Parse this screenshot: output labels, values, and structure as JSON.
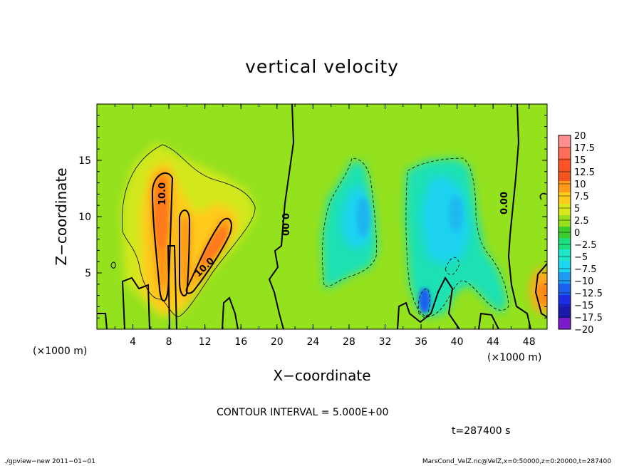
{
  "chart_data": {
    "type": "heatmap",
    "title": "vertical velocity",
    "xlabel": "X−coordinate",
    "ylabel": "Z−coordinate",
    "x_unit": "(×1000 m)",
    "y_unit": "(×1000 m)",
    "xlim": [
      0,
      50
    ],
    "ylim": [
      0,
      20
    ],
    "x_ticks": [
      4,
      8,
      12,
      16,
      20,
      24,
      28,
      32,
      36,
      40,
      44,
      48
    ],
    "y_ticks": [
      5,
      10,
      15
    ],
    "colorbar": {
      "levels": [
        20,
        17.5,
        15,
        12.5,
        10,
        7.5,
        5,
        2.5,
        0,
        -2.5,
        -5,
        -7.5,
        -10,
        -12.5,
        -15,
        -17.5,
        -20
      ],
      "labels": [
        "20",
        "17.5",
        "15",
        "12.5",
        "10",
        "7.5",
        "5",
        "2.5",
        "0",
        "−2.5",
        "−5",
        "−7.5",
        "−10",
        "−12.5",
        "−15",
        "−17.5",
        "−20"
      ],
      "colors": [
        "#ff8f8f",
        "#ff6e5a",
        "#ff5226",
        "#f5541e",
        "#ff9a1a",
        "#ffcb1a",
        "#d8e81c",
        "#98e01c",
        "#3ccc2a",
        "#1cdf7e",
        "#1ce7c8",
        "#1cd7f0",
        "#1c9bf0",
        "#1a5ff0",
        "#1a2ce6",
        "#1a1aa8",
        "#7a1ac8"
      ]
    },
    "contour_labels": [
      "10.0",
      "10.0",
      "0.00",
      "0.00"
    ],
    "contour_interval": "CONTOUR INTERVAL = 5.000E+00",
    "time_label": "t=287400 s",
    "features": [
      {
        "name": "updraft",
        "x": 8,
        "z": 9,
        "peak": 12.5
      },
      {
        "name": "updraft",
        "x": 13,
        "z": 7,
        "peak": 12.5
      },
      {
        "name": "downdraft",
        "x": 29,
        "z": 9,
        "peak": -7.5
      },
      {
        "name": "downdraft",
        "x": 40.5,
        "z": 9.5,
        "peak": -5
      },
      {
        "name": "downdraft",
        "x": 36,
        "z": 2.5,
        "peak": -12.5
      },
      {
        "name": "updraft",
        "x": 49,
        "z": 3.5,
        "peak": 10
      }
    ]
  },
  "footer": {
    "left": "./gpview−new   2011−01−01",
    "right": "MarsCond_VelZ.nc@VelZ,x=0:50000,z=0:20000,t=287400"
  }
}
